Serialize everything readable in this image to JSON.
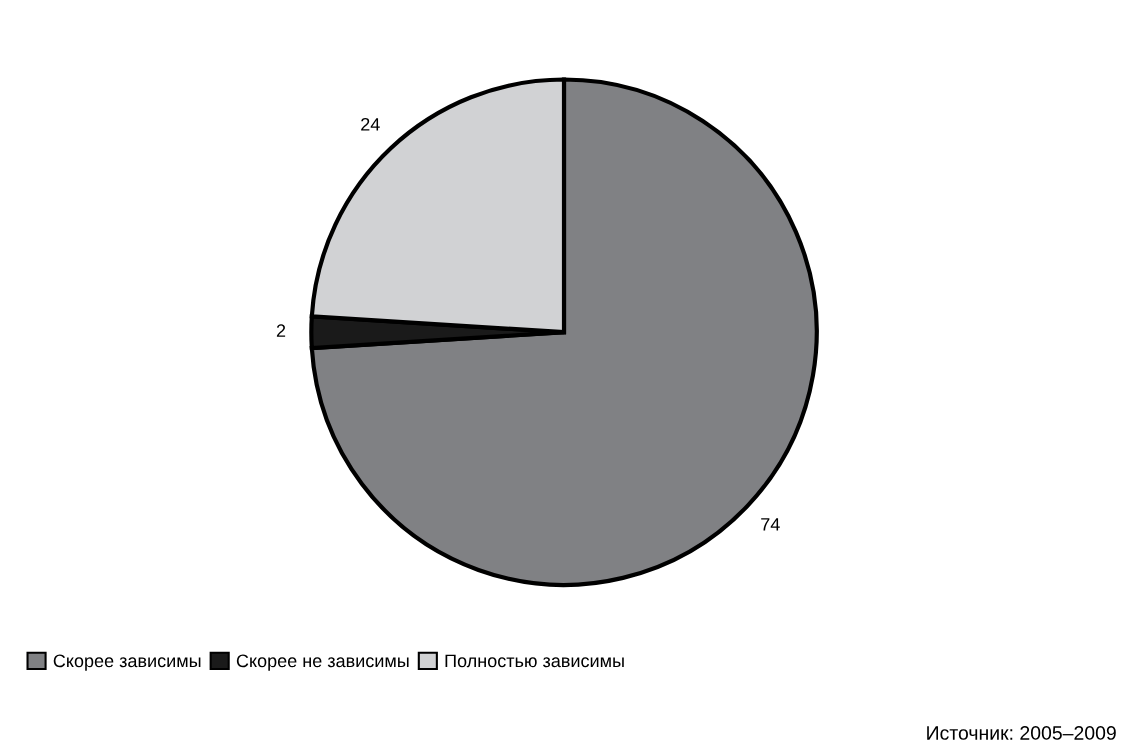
{
  "chart_data": {
    "type": "pie",
    "categories": [
      "Скорее зависимы",
      "Скорее не зависимы",
      "Полностью зависимы"
    ],
    "values": [
      74,
      2,
      24
    ],
    "colors": [
      "#808184",
      "#1a1a1a",
      "#d1d2d4"
    ],
    "data_labels": true,
    "legend": "bottom left",
    "annotations": [
      "Источник: 2005–2009"
    ]
  }
}
